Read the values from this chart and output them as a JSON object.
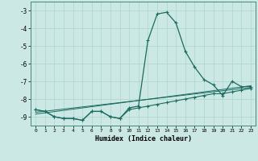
{
  "xlabel": "Humidex (Indice chaleur)",
  "bg_color": "#cce8e4",
  "grid_color": "#b0d8d0",
  "line_color": "#1a6b60",
  "xlim": [
    -0.5,
    23.5
  ],
  "ylim": [
    -9.5,
    -2.5
  ],
  "yticks": [
    -9,
    -8,
    -7,
    -6,
    -5,
    -4,
    -3
  ],
  "xticks": [
    0,
    1,
    2,
    3,
    4,
    5,
    6,
    7,
    8,
    9,
    10,
    11,
    12,
    13,
    14,
    15,
    16,
    17,
    18,
    19,
    20,
    21,
    22,
    23
  ],
  "main_x": [
    0,
    1,
    2,
    3,
    4,
    5,
    6,
    7,
    8,
    9,
    10,
    11,
    12,
    13,
    14,
    15,
    16,
    17,
    18,
    19,
    20,
    21,
    22,
    23
  ],
  "main_y": [
    -8.6,
    -8.7,
    -9.0,
    -9.1,
    -9.1,
    -9.2,
    -8.7,
    -8.7,
    -9.0,
    -9.1,
    -8.5,
    -8.4,
    -4.7,
    -3.2,
    -3.1,
    -3.7,
    -5.3,
    -6.2,
    -6.9,
    -7.2,
    -7.8,
    -7.0,
    -7.3,
    -7.3
  ],
  "line1_x": [
    0,
    1,
    2,
    3,
    4,
    5,
    6,
    7,
    8,
    9,
    10,
    11,
    12,
    13,
    14,
    15,
    16,
    17,
    18,
    19,
    20,
    21,
    22,
    23
  ],
  "line1_y": [
    -8.6,
    -8.7,
    -9.0,
    -9.1,
    -9.1,
    -9.2,
    -8.7,
    -8.7,
    -9.0,
    -9.1,
    -8.6,
    -8.5,
    -8.4,
    -8.3,
    -8.2,
    -8.1,
    -8.0,
    -7.9,
    -7.8,
    -7.7,
    -7.7,
    -7.6,
    -7.5,
    -7.4
  ],
  "line2_x": [
    0,
    23
  ],
  "line2_y": [
    -8.75,
    -7.35
  ],
  "line3_x": [
    0,
    23
  ],
  "line3_y": [
    -8.85,
    -7.25
  ]
}
